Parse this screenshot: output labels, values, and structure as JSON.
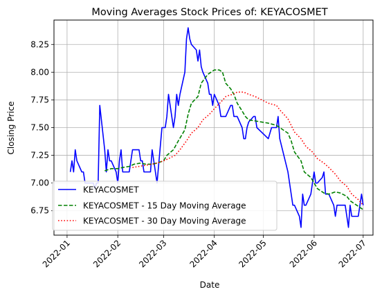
{
  "chart_data": {
    "type": "line",
    "title": "Moving Averages Stock Prices of: KEYACOSMET",
    "xlabel": "Date",
    "ylabel": "Closing Price",
    "grid": true,
    "legend_position": "lower-left",
    "xlim": [
      "2021-12-24",
      "2022-07-07"
    ],
    "ylim": [
      6.53,
      8.47
    ],
    "x_ticks": [
      {
        "date": "2022-01-01",
        "label": "2022-01"
      },
      {
        "date": "2022-02-01",
        "label": "2022-02"
      },
      {
        "date": "2022-03-01",
        "label": "2022-03"
      },
      {
        "date": "2022-04-01",
        "label": "2022-04"
      },
      {
        "date": "2022-05-01",
        "label": "2022-05"
      },
      {
        "date": "2022-06-01",
        "label": "2022-06"
      },
      {
        "date": "2022-07-01",
        "label": "2022-07"
      }
    ],
    "y_ticks": [
      {
        "value": 6.75,
        "label": "6.75"
      },
      {
        "value": 7.0,
        "label": "7.00"
      },
      {
        "value": 7.25,
        "label": "7.25"
      },
      {
        "value": 7.5,
        "label": "7.50"
      },
      {
        "value": 7.75,
        "label": "7.75"
      },
      {
        "value": 8.0,
        "label": "8.00"
      },
      {
        "value": 8.25,
        "label": "8.25"
      }
    ],
    "series": [
      {
        "name": "KEYACOSMET",
        "color": "#0000ff",
        "style": "solid",
        "points": [
          [
            "2022-01-03",
            7.1
          ],
          [
            "2022-01-04",
            7.2
          ],
          [
            "2022-01-05",
            7.1
          ],
          [
            "2022-01-06",
            7.3
          ],
          [
            "2022-01-07",
            7.2
          ],
          [
            "2022-01-10",
            7.1
          ],
          [
            "2022-01-11",
            7.1
          ],
          [
            "2022-01-12",
            7.0
          ],
          [
            "2022-01-13",
            7.0
          ],
          [
            "2022-01-14",
            7.0
          ],
          [
            "2022-01-17",
            7.0
          ],
          [
            "2022-01-18",
            6.95
          ],
          [
            "2022-01-19",
            7.0
          ],
          [
            "2022-01-20",
            7.0
          ],
          [
            "2022-01-21",
            7.7
          ],
          [
            "2022-01-24",
            7.3
          ],
          [
            "2022-01-25",
            7.1
          ],
          [
            "2022-01-26",
            7.3
          ],
          [
            "2022-01-27",
            7.2
          ],
          [
            "2022-01-28",
            7.2
          ],
          [
            "2022-01-31",
            7.1
          ],
          [
            "2022-02-01",
            7.0
          ],
          [
            "2022-02-02",
            7.2
          ],
          [
            "2022-02-03",
            7.3
          ],
          [
            "2022-02-04",
            7.1
          ],
          [
            "2022-02-07",
            7.1
          ],
          [
            "2022-02-08",
            7.1
          ],
          [
            "2022-02-09",
            7.2
          ],
          [
            "2022-02-10",
            7.3
          ],
          [
            "2022-02-11",
            7.3
          ],
          [
            "2022-02-14",
            7.3
          ],
          [
            "2022-02-15",
            7.2
          ],
          [
            "2022-02-16",
            7.2
          ],
          [
            "2022-02-17",
            7.1
          ],
          [
            "2022-02-18",
            7.1
          ],
          [
            "2022-02-21",
            7.1
          ],
          [
            "2022-02-22",
            7.3
          ],
          [
            "2022-02-23",
            7.2
          ],
          [
            "2022-02-24",
            7.1
          ],
          [
            "2022-02-25",
            7.0
          ],
          [
            "2022-02-28",
            7.5
          ],
          [
            "2022-03-01",
            7.5
          ],
          [
            "2022-03-02",
            7.5
          ],
          [
            "2022-03-03",
            7.6
          ],
          [
            "2022-03-04",
            7.8
          ],
          [
            "2022-03-07",
            7.5
          ],
          [
            "2022-03-08",
            7.6
          ],
          [
            "2022-03-09",
            7.8
          ],
          [
            "2022-03-10",
            7.7
          ],
          [
            "2022-03-11",
            7.8
          ],
          [
            "2022-03-14",
            8.0
          ],
          [
            "2022-03-15",
            8.3
          ],
          [
            "2022-03-16",
            8.4
          ],
          [
            "2022-03-17",
            8.3
          ],
          [
            "2022-03-18",
            8.25
          ],
          [
            "2022-03-21",
            8.2
          ],
          [
            "2022-03-22",
            8.1
          ],
          [
            "2022-03-23",
            8.2
          ],
          [
            "2022-03-24",
            8.05
          ],
          [
            "2022-03-25",
            8.0
          ],
          [
            "2022-03-28",
            7.9
          ],
          [
            "2022-03-29",
            7.8
          ],
          [
            "2022-03-30",
            7.8
          ],
          [
            "2022-03-31",
            7.7
          ],
          [
            "2022-04-01",
            7.8
          ],
          [
            "2022-04-04",
            7.7
          ],
          [
            "2022-04-05",
            7.6
          ],
          [
            "2022-04-06",
            7.6
          ],
          [
            "2022-04-07",
            7.6
          ],
          [
            "2022-04-08",
            7.6
          ],
          [
            "2022-04-11",
            7.7
          ],
          [
            "2022-04-12",
            7.7
          ],
          [
            "2022-04-13",
            7.6
          ],
          [
            "2022-04-14",
            7.6
          ],
          [
            "2022-04-15",
            7.6
          ],
          [
            "2022-04-18",
            7.5
          ],
          [
            "2022-04-19",
            7.4
          ],
          [
            "2022-04-20",
            7.4
          ],
          [
            "2022-04-21",
            7.5
          ],
          [
            "2022-04-22",
            7.55
          ],
          [
            "2022-04-25",
            7.6
          ],
          [
            "2022-04-26",
            7.6
          ],
          [
            "2022-04-27",
            7.5
          ],
          [
            "2022-05-04",
            7.4
          ],
          [
            "2022-05-05",
            7.45
          ],
          [
            "2022-05-06",
            7.5
          ],
          [
            "2022-05-09",
            7.5
          ],
          [
            "2022-05-10",
            7.6
          ],
          [
            "2022-05-11",
            7.4
          ],
          [
            "2022-05-16",
            7.1
          ],
          [
            "2022-05-17",
            7.0
          ],
          [
            "2022-05-18",
            6.9
          ],
          [
            "2022-05-19",
            6.8
          ],
          [
            "2022-05-20",
            6.8
          ],
          [
            "2022-05-23",
            6.7
          ],
          [
            "2022-05-24",
            6.6
          ],
          [
            "2022-05-25",
            6.9
          ],
          [
            "2022-05-26",
            6.8
          ],
          [
            "2022-05-27",
            6.8
          ],
          [
            "2022-05-30",
            6.9
          ],
          [
            "2022-05-31",
            7.0
          ],
          [
            "2022-06-01",
            7.1
          ],
          [
            "2022-06-02",
            7.0
          ],
          [
            "2022-06-03",
            7.0
          ],
          [
            "2022-06-06",
            7.05
          ],
          [
            "2022-06-07",
            7.1
          ],
          [
            "2022-06-08",
            6.9
          ],
          [
            "2022-06-09",
            6.9
          ],
          [
            "2022-06-10",
            6.9
          ],
          [
            "2022-06-13",
            6.8
          ],
          [
            "2022-06-14",
            6.7
          ],
          [
            "2022-06-15",
            6.8
          ],
          [
            "2022-06-16",
            6.8
          ],
          [
            "2022-06-17",
            6.8
          ],
          [
            "2022-06-20",
            6.8
          ],
          [
            "2022-06-21",
            6.7
          ],
          [
            "2022-06-22",
            6.6
          ],
          [
            "2022-06-23",
            6.8
          ],
          [
            "2022-06-24",
            6.7
          ],
          [
            "2022-06-27",
            6.7
          ],
          [
            "2022-06-28",
            6.7
          ],
          [
            "2022-06-29",
            6.8
          ],
          [
            "2022-06-30",
            6.9
          ],
          [
            "2022-07-01",
            6.8
          ]
        ]
      },
      {
        "name": "KEYACOSMET - 15 Day Moving Average",
        "color": "#008000",
        "style": "dashed",
        "points": [
          [
            "2022-01-24",
            7.11
          ],
          [
            "2022-01-28",
            7.13
          ],
          [
            "2022-02-01",
            7.13
          ],
          [
            "2022-02-04",
            7.14
          ],
          [
            "2022-02-08",
            7.15
          ],
          [
            "2022-02-11",
            7.17
          ],
          [
            "2022-02-15",
            7.18
          ],
          [
            "2022-02-18",
            7.17
          ],
          [
            "2022-02-22",
            7.17
          ],
          [
            "2022-02-25",
            7.18
          ],
          [
            "2022-03-01",
            7.2
          ],
          [
            "2022-03-03",
            7.25
          ],
          [
            "2022-03-07",
            7.3
          ],
          [
            "2022-03-10",
            7.38
          ],
          [
            "2022-03-14",
            7.48
          ],
          [
            "2022-03-16",
            7.62
          ],
          [
            "2022-03-18",
            7.72
          ],
          [
            "2022-03-22",
            7.78
          ],
          [
            "2022-03-24",
            7.9
          ],
          [
            "2022-03-28",
            7.98
          ],
          [
            "2022-03-31",
            8.01
          ],
          [
            "2022-04-01",
            8.02
          ],
          [
            "2022-04-04",
            8.02
          ],
          [
            "2022-04-06",
            8.0
          ],
          [
            "2022-04-08",
            7.9
          ],
          [
            "2022-04-11",
            7.85
          ],
          [
            "2022-04-13",
            7.8
          ],
          [
            "2022-04-15",
            7.72
          ],
          [
            "2022-04-18",
            7.65
          ],
          [
            "2022-04-20",
            7.6
          ],
          [
            "2022-04-22",
            7.57
          ],
          [
            "2022-04-26",
            7.56
          ],
          [
            "2022-05-04",
            7.54
          ],
          [
            "2022-05-09",
            7.52
          ],
          [
            "2022-05-11",
            7.5
          ],
          [
            "2022-05-16",
            7.45
          ],
          [
            "2022-05-18",
            7.38
          ],
          [
            "2022-05-20",
            7.28
          ],
          [
            "2022-05-24",
            7.2
          ],
          [
            "2022-05-26",
            7.1
          ],
          [
            "2022-05-30",
            7.05
          ],
          [
            "2022-06-01",
            7.0
          ],
          [
            "2022-06-03",
            6.95
          ],
          [
            "2022-06-07",
            6.91
          ],
          [
            "2022-06-10",
            6.9
          ],
          [
            "2022-06-14",
            6.92
          ],
          [
            "2022-06-17",
            6.91
          ],
          [
            "2022-06-21",
            6.88
          ],
          [
            "2022-06-23",
            6.84
          ],
          [
            "2022-06-27",
            6.8
          ],
          [
            "2022-06-30",
            6.77
          ],
          [
            "2022-07-01",
            6.76
          ]
        ]
      },
      {
        "name": "KEYACOSMET - 30 Day Moving Average",
        "color": "#ff0000",
        "style": "dotted",
        "points": [
          [
            "2022-02-10",
            7.14
          ],
          [
            "2022-02-14",
            7.15
          ],
          [
            "2022-02-18",
            7.16
          ],
          [
            "2022-02-22",
            7.17
          ],
          [
            "2022-02-25",
            7.18
          ],
          [
            "2022-03-01",
            7.2
          ],
          [
            "2022-03-04",
            7.22
          ],
          [
            "2022-03-08",
            7.25
          ],
          [
            "2022-03-11",
            7.3
          ],
          [
            "2022-03-15",
            7.38
          ],
          [
            "2022-03-18",
            7.45
          ],
          [
            "2022-03-22",
            7.5
          ],
          [
            "2022-03-25",
            7.57
          ],
          [
            "2022-03-29",
            7.62
          ],
          [
            "2022-04-01",
            7.67
          ],
          [
            "2022-04-05",
            7.73
          ],
          [
            "2022-04-08",
            7.78
          ],
          [
            "2022-04-12",
            7.8
          ],
          [
            "2022-04-15",
            7.82
          ],
          [
            "2022-04-19",
            7.82
          ],
          [
            "2022-04-22",
            7.8
          ],
          [
            "2022-04-26",
            7.78
          ],
          [
            "2022-05-04",
            7.72
          ],
          [
            "2022-05-09",
            7.7
          ],
          [
            "2022-05-11",
            7.66
          ],
          [
            "2022-05-16",
            7.58
          ],
          [
            "2022-05-18",
            7.52
          ],
          [
            "2022-05-20",
            7.46
          ],
          [
            "2022-05-24",
            7.4
          ],
          [
            "2022-05-27",
            7.33
          ],
          [
            "2022-05-31",
            7.28
          ],
          [
            "2022-06-03",
            7.22
          ],
          [
            "2022-06-07",
            7.18
          ],
          [
            "2022-06-10",
            7.14
          ],
          [
            "2022-06-14",
            7.08
          ],
          [
            "2022-06-17",
            7.02
          ],
          [
            "2022-06-21",
            6.97
          ],
          [
            "2022-06-24",
            6.9
          ],
          [
            "2022-06-28",
            6.85
          ],
          [
            "2022-07-01",
            6.8
          ]
        ]
      }
    ]
  }
}
